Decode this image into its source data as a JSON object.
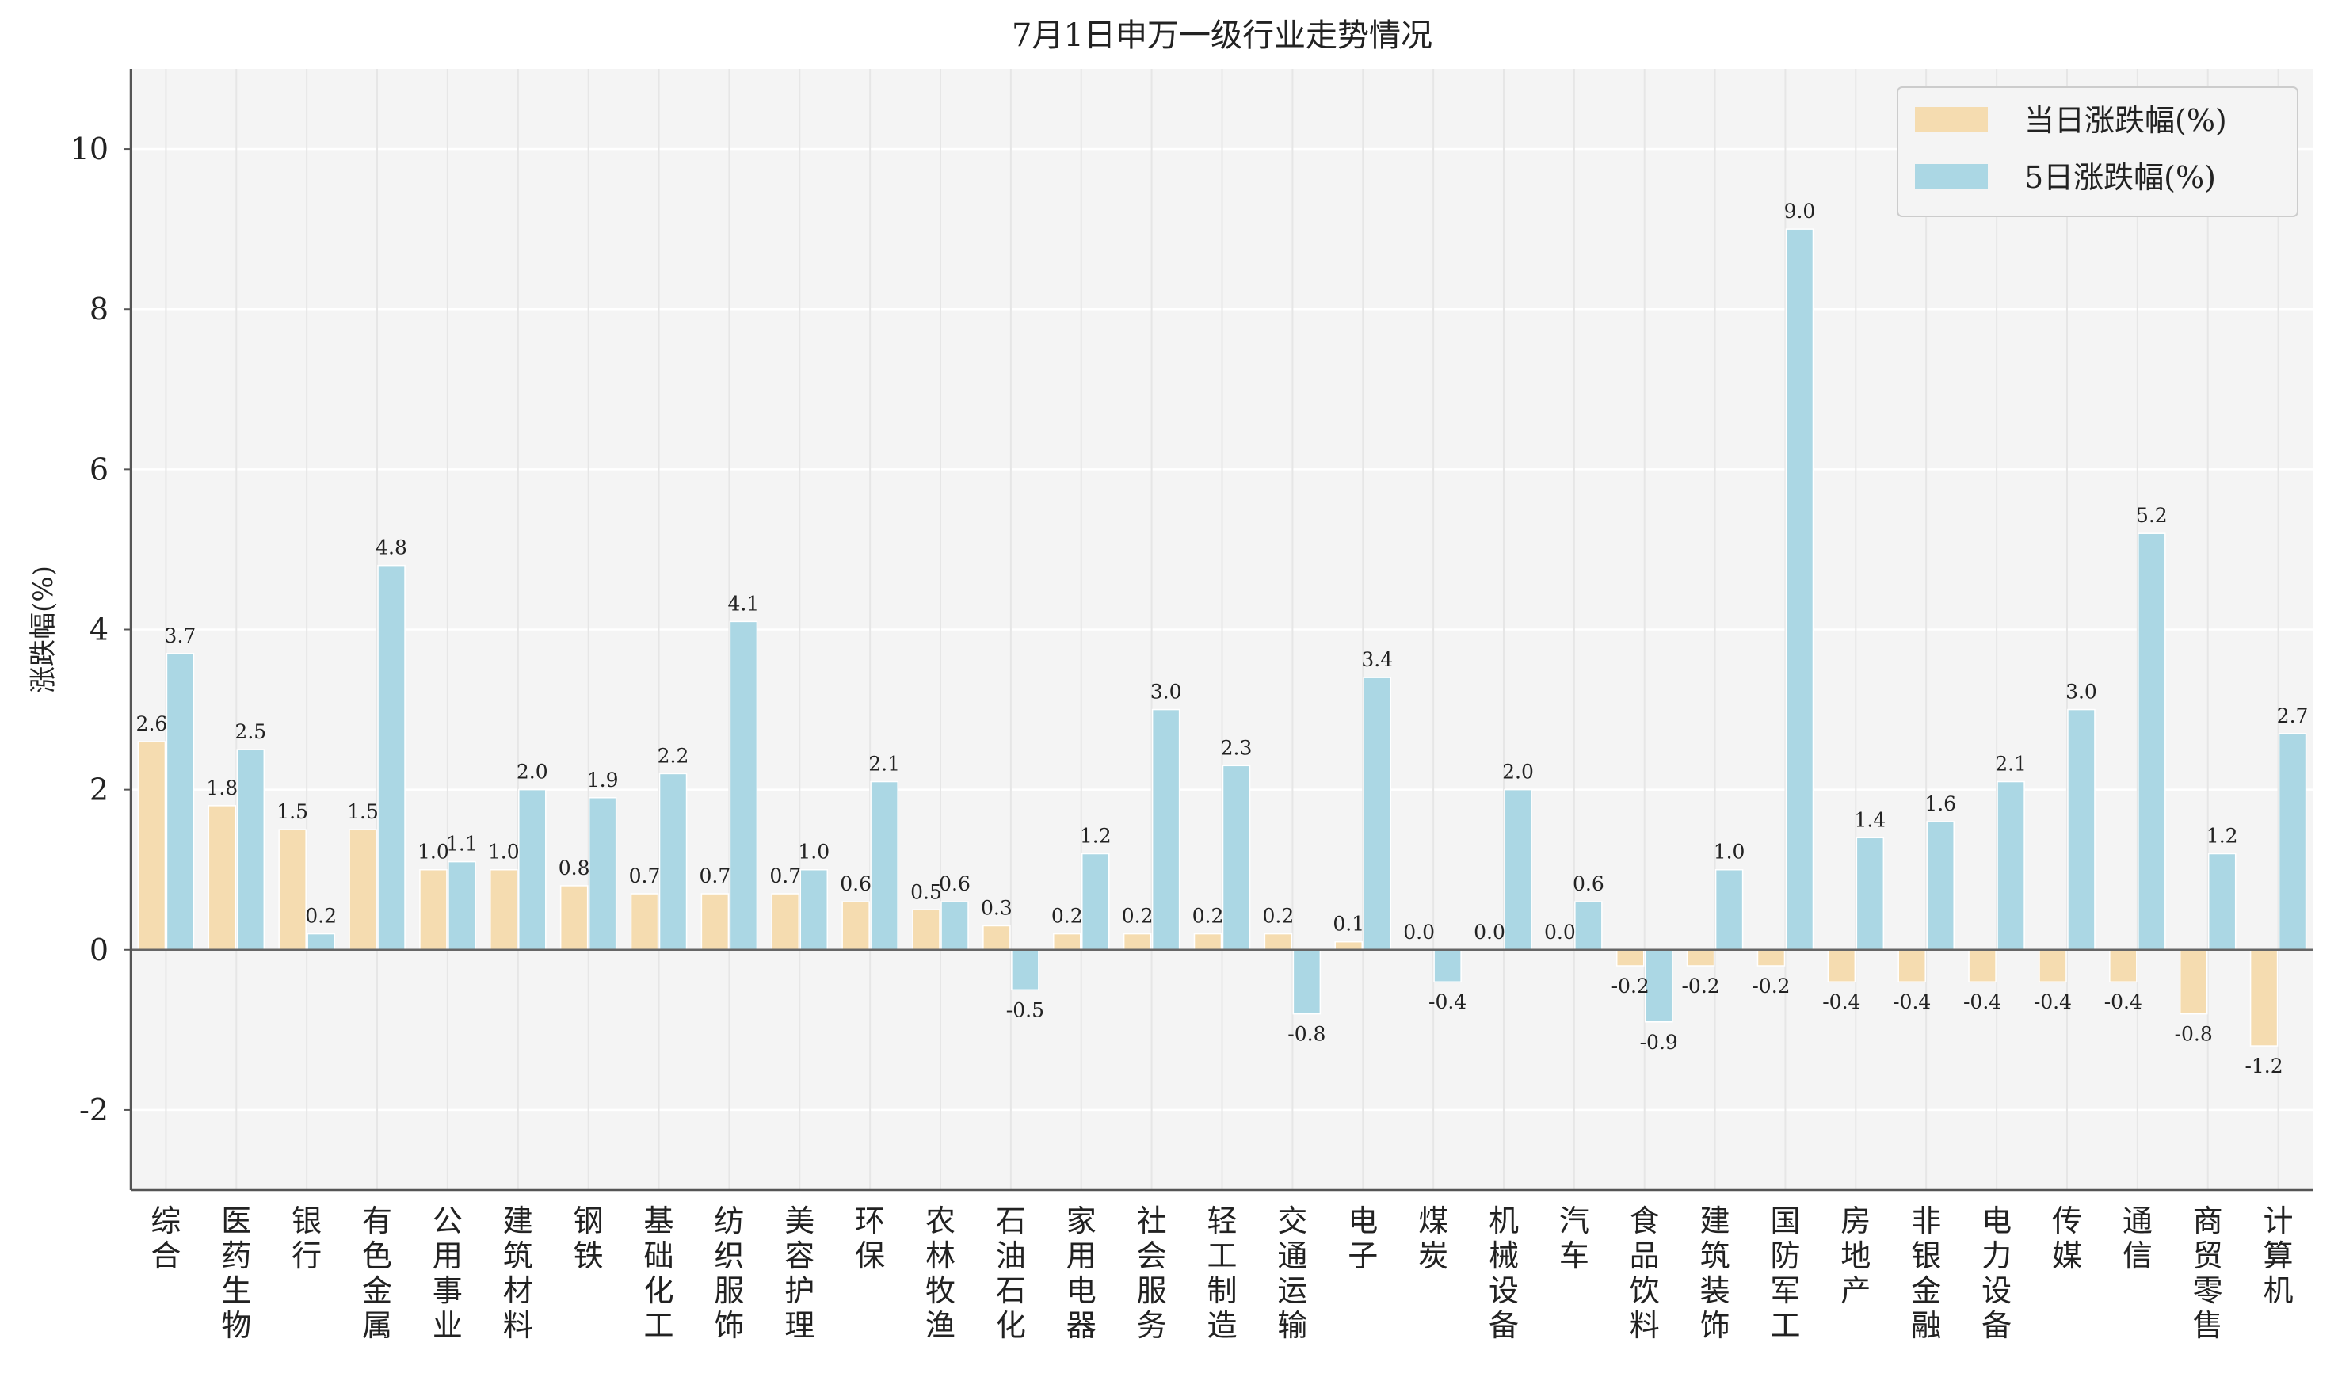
{
  "chart_data": {
    "type": "bar",
    "title": "7月1日申万一级行业走势情况",
    "xlabel": "",
    "ylabel": "涨跌幅(%)",
    "ylim": [
      -3,
      11
    ],
    "yticks": [
      -2,
      0,
      2,
      4,
      6,
      8,
      10
    ],
    "grid": true,
    "legend_position": "top-right",
    "categories": [
      "综合",
      "医药生物",
      "银行",
      "有色金属",
      "公用事业",
      "建筑材料",
      "钢铁",
      "基础化工",
      "纺织服饰",
      "美容护理",
      "环保",
      "农林牧渔",
      "石油石化",
      "家用电器",
      "社会服务",
      "轻工制造",
      "交通运输",
      "电子",
      "煤炭",
      "机械设备",
      "汽车",
      "食品饮料",
      "建筑装饰",
      "国防军工",
      "房地产",
      "非银金融",
      "电力设备",
      "传媒",
      "通信",
      "商贸零售",
      "计算机"
    ],
    "series": [
      {
        "name": "当日涨跌幅(%)",
        "color": "#f5dcb0",
        "values": [
          2.6,
          1.8,
          1.5,
          1.5,
          1.0,
          1.0,
          0.8,
          0.7,
          0.7,
          0.7,
          0.6,
          0.5,
          0.3,
          0.2,
          0.2,
          0.2,
          0.2,
          0.1,
          0.0,
          0.0,
          0.0,
          -0.2,
          -0.2,
          -0.2,
          -0.4,
          -0.4,
          -0.4,
          -0.4,
          -0.4,
          -0.8,
          -1.2
        ],
        "labels": [
          "2.6",
          "1.8",
          "1.5",
          "1.5",
          "1.0",
          "1.0",
          "0.8",
          "0.7",
          "0.7",
          "0.7",
          "0.6",
          "0.5",
          "0.3",
          "0.2",
          "0.2",
          "0.2",
          "0.2",
          "0.1",
          "0.0",
          "0.0",
          "0.0",
          "-0.2",
          "-0.2",
          "-0.2",
          "-0.4",
          "-0.4",
          "-0.4",
          "-0.4",
          "-0.4",
          "-0.8",
          "-1.2"
        ]
      },
      {
        "name": "5日涨跌幅(%)",
        "color": "#abd7e4",
        "values": [
          3.7,
          2.5,
          0.2,
          4.8,
          1.1,
          2.0,
          1.9,
          2.2,
          4.1,
          1.0,
          2.1,
          0.6,
          -0.5,
          1.2,
          3.0,
          2.3,
          -0.8,
          3.4,
          -0.4,
          2.0,
          0.6,
          -0.9,
          1.0,
          9.0,
          1.4,
          1.6,
          2.1,
          3.0,
          5.2,
          1.2,
          2.7
        ],
        "labels": [
          "3.7",
          "2.5",
          "0.2",
          "4.8",
          "1.1",
          "2.0",
          "1.9",
          "2.2",
          "4.1",
          "1.0",
          "2.1",
          "0.6",
          "-0.5",
          "1.2",
          "3.0",
          "2.3",
          "-0.8",
          "3.4",
          "-0.4",
          "2.0",
          "0.6",
          "-0.9",
          "1.0",
          "9.0",
          "1.4",
          "1.6",
          "2.1",
          "3.0",
          "5.2",
          "1.2",
          "2.7"
        ]
      }
    ],
    "colors": {
      "plot_background": "#f4f4f4",
      "grid": "#ffffff",
      "axis": "#555555",
      "zero_line": "#666666"
    }
  }
}
